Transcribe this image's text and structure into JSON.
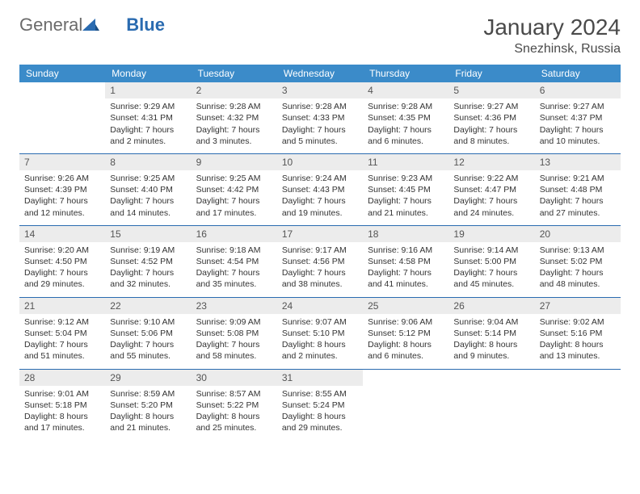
{
  "brand": {
    "part1": "General",
    "part2": "Blue"
  },
  "title": "January 2024",
  "location": "Snezhinsk, Russia",
  "colors": {
    "header_bg": "#3b8bc9",
    "header_text": "#ffffff",
    "daynum_bg": "#ececec",
    "border": "#2a6bb0",
    "body_text": "#333333",
    "logo_gray": "#6b6b6b",
    "logo_blue": "#2a6bb0"
  },
  "day_names": [
    "Sunday",
    "Monday",
    "Tuesday",
    "Wednesday",
    "Thursday",
    "Friday",
    "Saturday"
  ],
  "weeks": [
    [
      {
        "n": "",
        "sr": "",
        "ss": "",
        "dl": ""
      },
      {
        "n": "1",
        "sr": "Sunrise: 9:29 AM",
        "ss": "Sunset: 4:31 PM",
        "dl": "Daylight: 7 hours and 2 minutes."
      },
      {
        "n": "2",
        "sr": "Sunrise: 9:28 AM",
        "ss": "Sunset: 4:32 PM",
        "dl": "Daylight: 7 hours and 3 minutes."
      },
      {
        "n": "3",
        "sr": "Sunrise: 9:28 AM",
        "ss": "Sunset: 4:33 PM",
        "dl": "Daylight: 7 hours and 5 minutes."
      },
      {
        "n": "4",
        "sr": "Sunrise: 9:28 AM",
        "ss": "Sunset: 4:35 PM",
        "dl": "Daylight: 7 hours and 6 minutes."
      },
      {
        "n": "5",
        "sr": "Sunrise: 9:27 AM",
        "ss": "Sunset: 4:36 PM",
        "dl": "Daylight: 7 hours and 8 minutes."
      },
      {
        "n": "6",
        "sr": "Sunrise: 9:27 AM",
        "ss": "Sunset: 4:37 PM",
        "dl": "Daylight: 7 hours and 10 minutes."
      }
    ],
    [
      {
        "n": "7",
        "sr": "Sunrise: 9:26 AM",
        "ss": "Sunset: 4:39 PM",
        "dl": "Daylight: 7 hours and 12 minutes."
      },
      {
        "n": "8",
        "sr": "Sunrise: 9:25 AM",
        "ss": "Sunset: 4:40 PM",
        "dl": "Daylight: 7 hours and 14 minutes."
      },
      {
        "n": "9",
        "sr": "Sunrise: 9:25 AM",
        "ss": "Sunset: 4:42 PM",
        "dl": "Daylight: 7 hours and 17 minutes."
      },
      {
        "n": "10",
        "sr": "Sunrise: 9:24 AM",
        "ss": "Sunset: 4:43 PM",
        "dl": "Daylight: 7 hours and 19 minutes."
      },
      {
        "n": "11",
        "sr": "Sunrise: 9:23 AM",
        "ss": "Sunset: 4:45 PM",
        "dl": "Daylight: 7 hours and 21 minutes."
      },
      {
        "n": "12",
        "sr": "Sunrise: 9:22 AM",
        "ss": "Sunset: 4:47 PM",
        "dl": "Daylight: 7 hours and 24 minutes."
      },
      {
        "n": "13",
        "sr": "Sunrise: 9:21 AM",
        "ss": "Sunset: 4:48 PM",
        "dl": "Daylight: 7 hours and 27 minutes."
      }
    ],
    [
      {
        "n": "14",
        "sr": "Sunrise: 9:20 AM",
        "ss": "Sunset: 4:50 PM",
        "dl": "Daylight: 7 hours and 29 minutes."
      },
      {
        "n": "15",
        "sr": "Sunrise: 9:19 AM",
        "ss": "Sunset: 4:52 PM",
        "dl": "Daylight: 7 hours and 32 minutes."
      },
      {
        "n": "16",
        "sr": "Sunrise: 9:18 AM",
        "ss": "Sunset: 4:54 PM",
        "dl": "Daylight: 7 hours and 35 minutes."
      },
      {
        "n": "17",
        "sr": "Sunrise: 9:17 AM",
        "ss": "Sunset: 4:56 PM",
        "dl": "Daylight: 7 hours and 38 minutes."
      },
      {
        "n": "18",
        "sr": "Sunrise: 9:16 AM",
        "ss": "Sunset: 4:58 PM",
        "dl": "Daylight: 7 hours and 41 minutes."
      },
      {
        "n": "19",
        "sr": "Sunrise: 9:14 AM",
        "ss": "Sunset: 5:00 PM",
        "dl": "Daylight: 7 hours and 45 minutes."
      },
      {
        "n": "20",
        "sr": "Sunrise: 9:13 AM",
        "ss": "Sunset: 5:02 PM",
        "dl": "Daylight: 7 hours and 48 minutes."
      }
    ],
    [
      {
        "n": "21",
        "sr": "Sunrise: 9:12 AM",
        "ss": "Sunset: 5:04 PM",
        "dl": "Daylight: 7 hours and 51 minutes."
      },
      {
        "n": "22",
        "sr": "Sunrise: 9:10 AM",
        "ss": "Sunset: 5:06 PM",
        "dl": "Daylight: 7 hours and 55 minutes."
      },
      {
        "n": "23",
        "sr": "Sunrise: 9:09 AM",
        "ss": "Sunset: 5:08 PM",
        "dl": "Daylight: 7 hours and 58 minutes."
      },
      {
        "n": "24",
        "sr": "Sunrise: 9:07 AM",
        "ss": "Sunset: 5:10 PM",
        "dl": "Daylight: 8 hours and 2 minutes."
      },
      {
        "n": "25",
        "sr": "Sunrise: 9:06 AM",
        "ss": "Sunset: 5:12 PM",
        "dl": "Daylight: 8 hours and 6 minutes."
      },
      {
        "n": "26",
        "sr": "Sunrise: 9:04 AM",
        "ss": "Sunset: 5:14 PM",
        "dl": "Daylight: 8 hours and 9 minutes."
      },
      {
        "n": "27",
        "sr": "Sunrise: 9:02 AM",
        "ss": "Sunset: 5:16 PM",
        "dl": "Daylight: 8 hours and 13 minutes."
      }
    ],
    [
      {
        "n": "28",
        "sr": "Sunrise: 9:01 AM",
        "ss": "Sunset: 5:18 PM",
        "dl": "Daylight: 8 hours and 17 minutes."
      },
      {
        "n": "29",
        "sr": "Sunrise: 8:59 AM",
        "ss": "Sunset: 5:20 PM",
        "dl": "Daylight: 8 hours and 21 minutes."
      },
      {
        "n": "30",
        "sr": "Sunrise: 8:57 AM",
        "ss": "Sunset: 5:22 PM",
        "dl": "Daylight: 8 hours and 25 minutes."
      },
      {
        "n": "31",
        "sr": "Sunrise: 8:55 AM",
        "ss": "Sunset: 5:24 PM",
        "dl": "Daylight: 8 hours and 29 minutes."
      },
      {
        "n": "",
        "sr": "",
        "ss": "",
        "dl": ""
      },
      {
        "n": "",
        "sr": "",
        "ss": "",
        "dl": ""
      },
      {
        "n": "",
        "sr": "",
        "ss": "",
        "dl": ""
      }
    ]
  ]
}
